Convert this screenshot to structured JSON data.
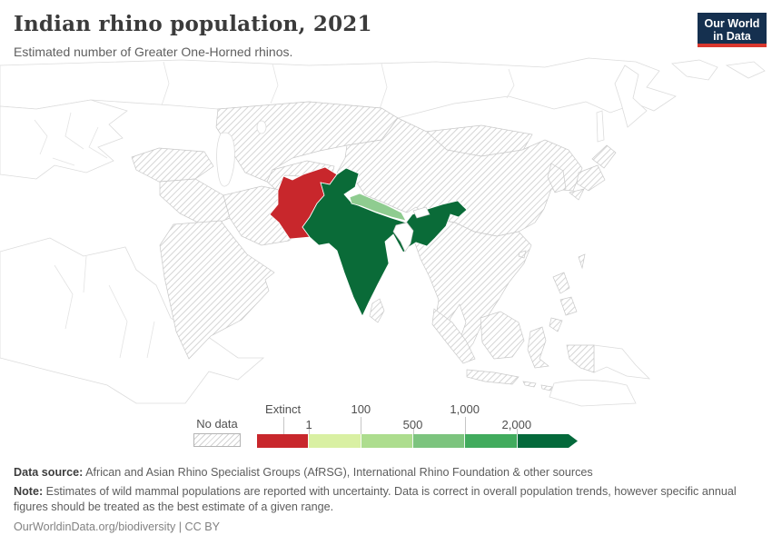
{
  "header": {
    "title": "Indian rhino population, 2021",
    "subtitle": "Estimated number of Greater One-Horned rhinos.",
    "logo": {
      "line1": "Our World",
      "line2": "in Data",
      "bg_color": "#15304f",
      "accent_color": "#d9372e"
    }
  },
  "chart_data": {
    "type": "choropleth_map",
    "title": "Indian rhino population, 2021",
    "subtitle": "Estimated number of Greater One-Horned rhinos.",
    "region_shown": "Asia (with surrounding Europe/Africa coastlines unshaded)",
    "no_data": {
      "label": "No data",
      "style": "diagonal-hatch"
    },
    "legend": {
      "position": "bottom",
      "segments": [
        {
          "range": "Extinct",
          "color": "#c8272c"
        },
        {
          "range": "1–100",
          "color": "#d9f0a3"
        },
        {
          "range": "100–500",
          "color": "#addd8e"
        },
        {
          "range": "500–1,000",
          "color": "#7cc47e"
        },
        {
          "range": "1,000–2,000",
          "color": "#41ab5d"
        },
        {
          "range": "2,000+",
          "color": "#04693b"
        }
      ],
      "ticks": [
        {
          "label": "Extinct",
          "row": "top"
        },
        {
          "label": "1",
          "row": "bottom"
        },
        {
          "label": "100",
          "row": "top"
        },
        {
          "label": "500",
          "row": "bottom"
        },
        {
          "label": "1,000",
          "row": "top"
        },
        {
          "label": "2,000",
          "row": "bottom"
        }
      ]
    },
    "entities": [
      {
        "name": "Pakistan",
        "value": "Extinct",
        "color": "#c8272c"
      },
      {
        "name": "India",
        "value": "2,000+",
        "color": "#0a6b38"
      },
      {
        "name": "Nepal",
        "value": "500–1,000",
        "color": "#8fcc90"
      },
      {
        "name": "Bhutan",
        "value": "",
        "color": "#ffffff"
      },
      {
        "name": "Bangladesh",
        "value": "",
        "color": "#ffffff"
      }
    ]
  },
  "footer": {
    "data_source_label": "Data source:",
    "data_source_text": " African and Asian Rhino Specialist Groups (AfRSG), International Rhino Foundation & other sources",
    "note_label": "Note:",
    "note_text": " Estimates of wild mammal populations are reported with uncertainty. Data is correct in overall population trends, however specific annual figures should be treated as the best estimate of a given range.",
    "license_line": "OurWorldinData.org/biodiversity | CC BY"
  }
}
